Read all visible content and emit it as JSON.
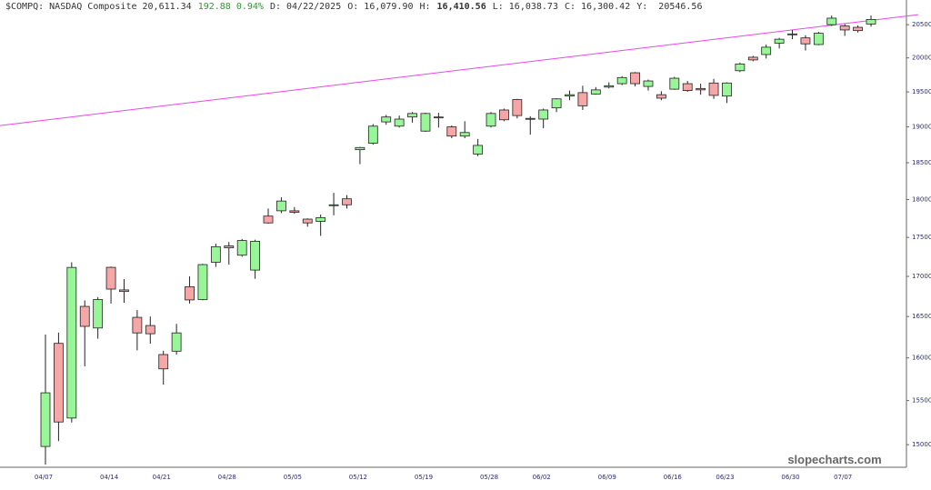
{
  "header": [
    {
      "text": "$COMPQ: NASDAQ Composite 20,611.34"
    },
    {
      "text": "192.88 0.94%",
      "color": "#2e9a2e"
    },
    {
      "text": "D: 04/22/2025"
    },
    {
      "text": "O: 16,079.90"
    },
    {
      "text": "H:"
    },
    {
      "text": "16,410.56",
      "bold": true
    },
    {
      "text": "L: 16,038.73"
    },
    {
      "text": "C: 16,300.42"
    },
    {
      "text": "Y:  20546.56"
    }
  ],
  "chart_data": {
    "type": "candlestick",
    "watermark": "slopecharts.com",
    "log": true,
    "up_color": "#98f598",
    "down_color": "#f5a6a6",
    "ylim": [
      14750,
      20880
    ],
    "yticks": [
      15000,
      15500,
      16000,
      16500,
      17000,
      17500,
      18000,
      18500,
      19000,
      19500,
      20000,
      20500
    ],
    "trendline": {
      "color": "#ee44ee",
      "values": [
        19018,
        20653
      ]
    },
    "categories": [
      "04/07",
      null,
      null,
      null,
      null,
      "04/14",
      null,
      null,
      null,
      "04/21",
      null,
      null,
      null,
      null,
      "04/28",
      null,
      null,
      null,
      null,
      "05/05",
      null,
      null,
      null,
      null,
      "05/12",
      null,
      null,
      null,
      null,
      "05/19",
      null,
      null,
      null,
      null,
      "05/28",
      null,
      null,
      null,
      "06/02",
      null,
      null,
      null,
      null,
      "06/09",
      null,
      null,
      null,
      null,
      "06/16",
      null,
      null,
      null,
      "06/23",
      null,
      null,
      null,
      null,
      "06/30",
      null,
      null,
      null,
      "07/07",
      null,
      null
    ],
    "open": [
      14980,
      16174,
      15300,
      16625,
      16360,
      17115,
      16830,
      16490,
      16390,
      16040,
      16079.9,
      16870,
      16710,
      17180,
      17390,
      17270,
      17080,
      17780,
      17850,
      17850,
      17740,
      17710,
      17920,
      18010,
      18680,
      18770,
      19070,
      19010,
      19140,
      18940,
      19140,
      19000,
      18870,
      18620,
      19010,
      19240,
      19390,
      19120,
      19110,
      19270,
      19440,
      19490,
      19470,
      19570,
      19620,
      19780,
      19580,
      19460,
      19540,
      19620,
      19550,
      19630,
      19440,
      19810,
      20010,
      20050,
      20220,
      20360,
      20300,
      20200,
      20500,
      20480,
      20460,
      20510
    ],
    "high": [
      16280,
      16304,
      17180,
      16700,
      16740,
      17125,
      16965,
      16580,
      16500,
      16085,
      16410.56,
      17000,
      17160,
      17420,
      17440,
      17480,
      17470,
      17880,
      18030,
      17900,
      17750,
      17800,
      18090,
      18060,
      18720,
      19040,
      19170,
      19160,
      19210,
      19200,
      19200,
      19020,
      19080,
      18830,
      19210,
      19260,
      19400,
      19150,
      19260,
      19410,
      19520,
      19590,
      19570,
      19640,
      19730,
      19790,
      19680,
      19510,
      19720,
      19660,
      19620,
      19690,
      19640,
      19930,
      20030,
      20200,
      20300,
      20420,
      20340,
      20390,
      20640,
      20510,
      20490,
      20640
    ],
    "low": [
      14780,
      15040,
      15250,
      15900,
      16230,
      16660,
      16670,
      16090,
      16170,
      15685,
      16038.73,
      16660,
      16700,
      17120,
      17150,
      17250,
      16970,
      17680,
      17820,
      17810,
      17640,
      17520,
      17790,
      17880,
      18480,
      18750,
      19030,
      18990,
      19060,
      18930,
      18990,
      18840,
      18840,
      18590,
      18990,
      19080,
      19120,
      18890,
      18980,
      19210,
      19380,
      19240,
      19460,
      19550,
      19600,
      19580,
      19520,
      19380,
      19530,
      19500,
      19460,
      19400,
      19340,
      19790,
      19950,
      19990,
      20140,
      20280,
      20110,
      20190,
      20480,
      20330,
      20380,
      20470
    ],
    "close": [
      15590,
      15255,
      17114,
      16380,
      16710,
      16840,
      16810,
      16300,
      16290,
      15870,
      16300.42,
      16705,
      17150,
      17380,
      17365,
      17460,
      17450,
      17690,
      17980,
      17830,
      17690,
      17760,
      17930,
      17930,
      18710,
      19010,
      19140,
      19110,
      19190,
      19190,
      19130,
      18870,
      18920,
      18740,
      19190,
      19100,
      19160,
      19110,
      19240,
      19400,
      19460,
      19300,
      19530,
      19590,
      19710,
      19620,
      19660,
      19410,
      19700,
      19520,
      19530,
      19450,
      19630,
      19910,
      19970,
      20160,
      20280,
      20350,
      20210,
      20370,
      20600,
      20420,
      20410,
      20580
    ]
  }
}
